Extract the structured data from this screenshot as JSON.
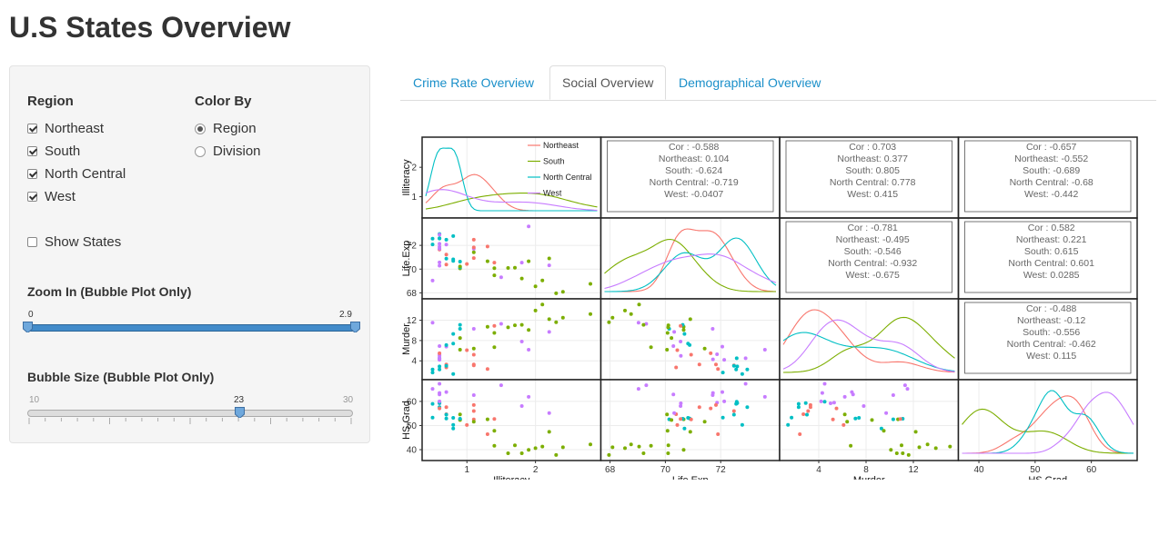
{
  "page": {
    "title": "U.S States Overview"
  },
  "sidebar": {
    "region_title": "Region",
    "regions": [
      {
        "label": "Northeast",
        "checked": true
      },
      {
        "label": "South",
        "checked": true
      },
      {
        "label": "North Central",
        "checked": true
      },
      {
        "label": "West",
        "checked": true
      }
    ],
    "color_title": "Color By",
    "color_options": [
      {
        "label": "Region",
        "selected": true
      },
      {
        "label": "Division",
        "selected": false
      }
    ],
    "show_states": {
      "label": "Show States",
      "checked": false
    },
    "zoom": {
      "title": "Zoom In (Bubble Plot Only)",
      "min_label": "0",
      "max_label": "2.9",
      "low": 0,
      "high": 2.9
    },
    "bubble": {
      "title": "Bubble Size (Bubble Plot Only)",
      "min_label": "10",
      "value_label": "23",
      "max_label": "30",
      "min": 10,
      "max": 30,
      "value": 23
    }
  },
  "tabs": [
    {
      "label": "Crime Rate Overview",
      "active": false
    },
    {
      "label": "Social Overview",
      "active": true
    },
    {
      "label": "Demographical Overview",
      "active": false
    }
  ],
  "chart_data": {
    "type": "scatter",
    "variables": [
      "Illiteracy",
      "Life.Exp",
      "Murder",
      "HS.Grad"
    ],
    "ranges": {
      "Illiteracy": [
        0.4,
        2.9
      ],
      "Life.Exp": [
        67.8,
        74.0
      ],
      "Murder": [
        1.0,
        15.5
      ],
      "HS.Grad": [
        37.0,
        67.5
      ]
    },
    "x_ticks": {
      "Illiteracy": [
        1,
        2
      ],
      "Life.Exp": [
        68,
        70,
        72
      ],
      "Murder": [
        4,
        8,
        12
      ],
      "HS.Grad": [
        40,
        50,
        60
      ]
    },
    "y_ticks": {
      "Illiteracy": [
        1,
        2
      ],
      "Life.Exp": [
        68,
        70,
        72
      ],
      "Murder": [
        4,
        8,
        12
      ],
      "HS.Grad": [
        40,
        50,
        60
      ]
    },
    "legend_labels": [
      "Northeast",
      "South",
      "North Central",
      "West"
    ],
    "colors": {
      "Northeast": "#F8766D",
      "South": "#7CAE00",
      "North Central": "#00BFC4",
      "West": "#C77CFF"
    },
    "legend_position": "top-right of first diagonal panel",
    "correlations": {
      "Illiteracy|Life.Exp": {
        "Cor": "-0.588",
        "Northeast": "0.104",
        "South": "-0.624",
        "North Central": "-0.719",
        "West": "-0.0407"
      },
      "Illiteracy|Murder": {
        "Cor": "0.703",
        "Northeast": "0.377",
        "South": "0.805",
        "North Central": "0.778",
        "West": "0.415"
      },
      "Illiteracy|HS.Grad": {
        "Cor": "-0.657",
        "Northeast": "-0.552",
        "South": "-0.689",
        "North Central": "-0.68",
        "West": "-0.442"
      },
      "Life.Exp|Murder": {
        "Cor": "-0.781",
        "Northeast": "-0.495",
        "South": "-0.546",
        "North Central": "-0.932",
        "West": "-0.675"
      },
      "Life.Exp|HS.Grad": {
        "Cor": "0.582",
        "Northeast": "0.221",
        "South": "0.615",
        "North Central": "0.601",
        "West": "0.0285"
      },
      "Murder|HS.Grad": {
        "Cor": "-0.488",
        "Northeast": "-0.12",
        "South": "-0.556",
        "North Central": "-0.462",
        "West": "0.115"
      }
    },
    "states": [
      {
        "region": "South",
        "Illiteracy": 2.1,
        "Life.Exp": 69.05,
        "Murder": 15.1,
        "HS.Grad": 41.3
      },
      {
        "region": "West",
        "Illiteracy": 1.5,
        "Life.Exp": 69.31,
        "Murder": 11.3,
        "HS.Grad": 66.7
      },
      {
        "region": "West",
        "Illiteracy": 1.8,
        "Life.Exp": 70.55,
        "Murder": 7.8,
        "HS.Grad": 58.1
      },
      {
        "region": "South",
        "Illiteracy": 1.9,
        "Life.Exp": 70.66,
        "Murder": 10.1,
        "HS.Grad": 39.9
      },
      {
        "region": "West",
        "Illiteracy": 1.1,
        "Life.Exp": 71.71,
        "Murder": 10.3,
        "HS.Grad": 62.6
      },
      {
        "region": "West",
        "Illiteracy": 0.7,
        "Life.Exp": 72.06,
        "Murder": 6.8,
        "HS.Grad": 63.9
      },
      {
        "region": "Northeast",
        "Illiteracy": 1.1,
        "Life.Exp": 72.48,
        "Murder": 3.1,
        "HS.Grad": 56.0
      },
      {
        "region": "South",
        "Illiteracy": 0.9,
        "Life.Exp": 70.06,
        "Murder": 6.2,
        "HS.Grad": 54.6
      },
      {
        "region": "South",
        "Illiteracy": 1.3,
        "Life.Exp": 70.66,
        "Murder": 10.7,
        "HS.Grad": 52.6
      },
      {
        "region": "South",
        "Illiteracy": 2.0,
        "Life.Exp": 68.54,
        "Murder": 13.9,
        "HS.Grad": 40.6
      },
      {
        "region": "West",
        "Illiteracy": 1.9,
        "Life.Exp": 73.6,
        "Murder": 6.2,
        "HS.Grad": 61.9
      },
      {
        "region": "West",
        "Illiteracy": 0.6,
        "Life.Exp": 71.87,
        "Murder": 5.3,
        "HS.Grad": 59.5
      },
      {
        "region": "North Central",
        "Illiteracy": 0.9,
        "Life.Exp": 70.14,
        "Murder": 10.3,
        "HS.Grad": 52.6
      },
      {
        "region": "North Central",
        "Illiteracy": 0.7,
        "Life.Exp": 70.88,
        "Murder": 7.1,
        "HS.Grad": 52.9
      },
      {
        "region": "North Central",
        "Illiteracy": 0.5,
        "Life.Exp": 72.56,
        "Murder": 2.3,
        "HS.Grad": 59.0
      },
      {
        "region": "North Central",
        "Illiteracy": 0.6,
        "Life.Exp": 72.58,
        "Murder": 4.5,
        "HS.Grad": 59.9
      },
      {
        "region": "South",
        "Illiteracy": 1.6,
        "Life.Exp": 70.1,
        "Murder": 10.6,
        "HS.Grad": 38.5
      },
      {
        "region": "South",
        "Illiteracy": 2.8,
        "Life.Exp": 68.76,
        "Murder": 13.2,
        "HS.Grad": 42.2
      },
      {
        "region": "Northeast",
        "Illiteracy": 0.7,
        "Life.Exp": 70.39,
        "Murder": 2.7,
        "HS.Grad": 54.7
      },
      {
        "region": "South",
        "Illiteracy": 0.9,
        "Life.Exp": 70.22,
        "Murder": 8.5,
        "HS.Grad": 52.3
      },
      {
        "region": "Northeast",
        "Illiteracy": 1.1,
        "Life.Exp": 71.83,
        "Murder": 3.3,
        "HS.Grad": 58.5
      },
      {
        "region": "North Central",
        "Illiteracy": 0.9,
        "Life.Exp": 70.63,
        "Murder": 11.1,
        "HS.Grad": 52.8
      },
      {
        "region": "North Central",
        "Illiteracy": 0.6,
        "Life.Exp": 72.96,
        "Murder": 2.3,
        "HS.Grad": 57.6
      },
      {
        "region": "South",
        "Illiteracy": 2.4,
        "Life.Exp": 68.09,
        "Murder": 12.5,
        "HS.Grad": 41.0
      },
      {
        "region": "North Central",
        "Illiteracy": 0.8,
        "Life.Exp": 70.69,
        "Murder": 9.3,
        "HS.Grad": 48.8
      },
      {
        "region": "West",
        "Illiteracy": 0.6,
        "Life.Exp": 70.56,
        "Murder": 5.0,
        "HS.Grad": 59.2
      },
      {
        "region": "North Central",
        "Illiteracy": 0.6,
        "Life.Exp": 72.6,
        "Murder": 2.9,
        "HS.Grad": 59.3
      },
      {
        "region": "West",
        "Illiteracy": 0.5,
        "Life.Exp": 69.03,
        "Murder": 11.5,
        "HS.Grad": 65.2
      },
      {
        "region": "Northeast",
        "Illiteracy": 0.7,
        "Life.Exp": 71.23,
        "Murder": 3.3,
        "HS.Grad": 57.6
      },
      {
        "region": "Northeast",
        "Illiteracy": 1.1,
        "Life.Exp": 70.93,
        "Murder": 5.2,
        "HS.Grad": 52.5
      },
      {
        "region": "West",
        "Illiteracy": 2.2,
        "Life.Exp": 70.32,
        "Murder": 9.7,
        "HS.Grad": 55.2
      },
      {
        "region": "Northeast",
        "Illiteracy": 1.4,
        "Life.Exp": 70.55,
        "Murder": 10.9,
        "HS.Grad": 52.7
      },
      {
        "region": "South",
        "Illiteracy": 1.8,
        "Life.Exp": 69.21,
        "Murder": 11.1,
        "HS.Grad": 38.5
      },
      {
        "region": "North Central",
        "Illiteracy": 0.8,
        "Life.Exp": 72.78,
        "Murder": 1.4,
        "HS.Grad": 50.3
      },
      {
        "region": "North Central",
        "Illiteracy": 0.8,
        "Life.Exp": 70.82,
        "Murder": 7.4,
        "HS.Grad": 53.2
      },
      {
        "region": "South",
        "Illiteracy": 1.1,
        "Life.Exp": 71.42,
        "Murder": 6.4,
        "HS.Grad": 51.6
      },
      {
        "region": "West",
        "Illiteracy": 0.6,
        "Life.Exp": 72.13,
        "Murder": 4.2,
        "HS.Grad": 60.0
      },
      {
        "region": "Northeast",
        "Illiteracy": 1.0,
        "Life.Exp": 70.43,
        "Murder": 6.1,
        "HS.Grad": 50.2
      },
      {
        "region": "Northeast",
        "Illiteracy": 1.3,
        "Life.Exp": 71.9,
        "Murder": 2.4,
        "HS.Grad": 46.4
      },
      {
        "region": "South",
        "Illiteracy": 2.3,
        "Life.Exp": 67.96,
        "Murder": 11.6,
        "HS.Grad": 37.8
      },
      {
        "region": "North Central",
        "Illiteracy": 0.5,
        "Life.Exp": 72.08,
        "Murder": 1.7,
        "HS.Grad": 53.3
      },
      {
        "region": "South",
        "Illiteracy": 1.7,
        "Life.Exp": 70.11,
        "Murder": 11.0,
        "HS.Grad": 41.8
      },
      {
        "region": "South",
        "Illiteracy": 2.2,
        "Life.Exp": 70.9,
        "Murder": 12.2,
        "HS.Grad": 47.4
      },
      {
        "region": "West",
        "Illiteracy": 0.6,
        "Life.Exp": 72.9,
        "Murder": 4.5,
        "HS.Grad": 67.3
      },
      {
        "region": "Northeast",
        "Illiteracy": 0.6,
        "Life.Exp": 71.64,
        "Murder": 5.5,
        "HS.Grad": 57.1
      },
      {
        "region": "South",
        "Illiteracy": 1.4,
        "Life.Exp": 70.08,
        "Murder": 9.5,
        "HS.Grad": 47.8
      },
      {
        "region": "West",
        "Illiteracy": 0.6,
        "Life.Exp": 71.72,
        "Murder": 4.3,
        "HS.Grad": 63.5
      },
      {
        "region": "South",
        "Illiteracy": 1.4,
        "Life.Exp": 69.48,
        "Murder": 6.7,
        "HS.Grad": 41.6
      },
      {
        "region": "North Central",
        "Illiteracy": 0.7,
        "Life.Exp": 72.48,
        "Murder": 3.0,
        "HS.Grad": 54.5
      },
      {
        "region": "West",
        "Illiteracy": 0.6,
        "Life.Exp": 70.29,
        "Murder": 6.9,
        "HS.Grad": 62.9
      }
    ]
  }
}
